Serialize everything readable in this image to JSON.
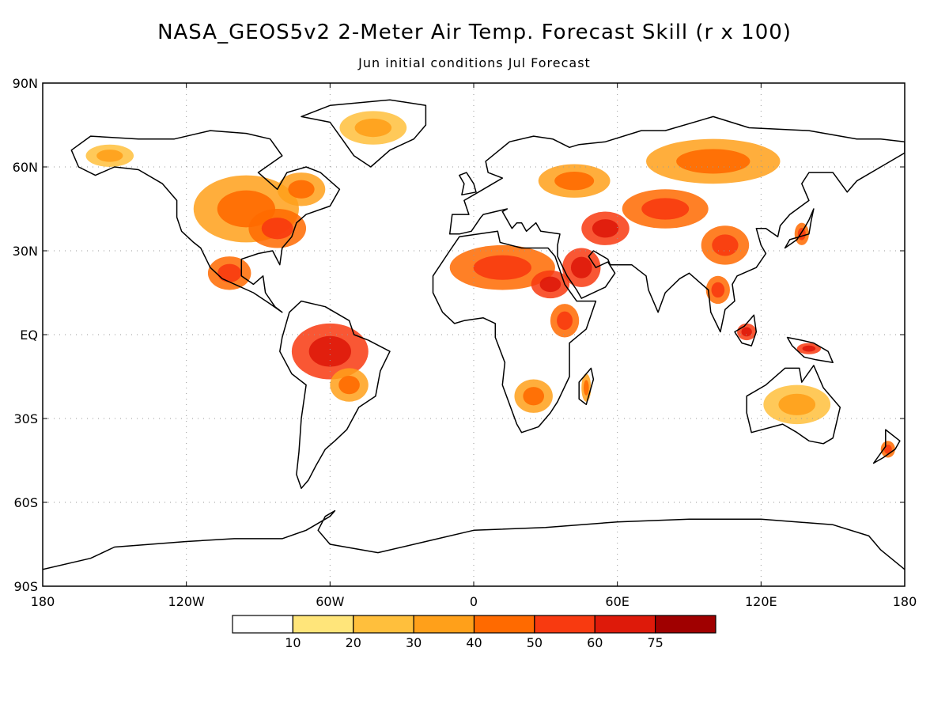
{
  "title": "NASA_GEOS5v2 2-Meter Air Temp. Forecast Skill (r x 100)",
  "subtitle": "Jun initial conditions   Jul Forecast",
  "map": {
    "projection": "latlon",
    "lon_range": [
      -180,
      180
    ],
    "lat_range": [
      -90,
      90
    ],
    "grid": "dotted",
    "lat_ticks": [
      {
        "value": 90,
        "label": "90N"
      },
      {
        "value": 60,
        "label": "60N"
      },
      {
        "value": 30,
        "label": "30N"
      },
      {
        "value": 0,
        "label": "EQ"
      },
      {
        "value": -30,
        "label": "30S"
      },
      {
        "value": -60,
        "label": "60S"
      },
      {
        "value": -90,
        "label": "90S"
      }
    ],
    "lon_ticks": [
      {
        "value": -180,
        "label": "180"
      },
      {
        "value": -120,
        "label": "120W"
      },
      {
        "value": -60,
        "label": "60W"
      },
      {
        "value": 0,
        "label": "0"
      },
      {
        "value": 60,
        "label": "60E"
      },
      {
        "value": 120,
        "label": "120E"
      },
      {
        "value": 180,
        "label": "180"
      }
    ]
  },
  "colorbar": {
    "colors": [
      "#ffffff",
      "#ffe57a",
      "#ffbf3c",
      "#ffa01a",
      "#ff6a00",
      "#f83a10",
      "#de1a0a",
      "#a00000"
    ],
    "labels": [
      "10",
      "20",
      "30",
      "40",
      "50",
      "60",
      "75"
    ]
  },
  "regions": [
    {
      "name": "north-america-interior",
      "lon": -95,
      "lat": 45,
      "rx": 22,
      "ry": 12,
      "level": 4
    },
    {
      "name": "eastern-us",
      "lon": -82,
      "lat": 38,
      "rx": 12,
      "ry": 7,
      "level": 5
    },
    {
      "name": "mexico",
      "lon": -102,
      "lat": 22,
      "rx": 9,
      "ry": 6,
      "level": 5
    },
    {
      "name": "canada-east",
      "lon": -72,
      "lat": 52,
      "rx": 10,
      "ry": 6,
      "level": 4
    },
    {
      "name": "greenland",
      "lon": -42,
      "lat": 74,
      "rx": 14,
      "ry": 6,
      "level": 3
    },
    {
      "name": "alaska",
      "lon": -152,
      "lat": 64,
      "rx": 10,
      "ry": 4,
      "level": 3
    },
    {
      "name": "amazon",
      "lon": -60,
      "lat": -6,
      "rx": 16,
      "ry": 10,
      "level": 6
    },
    {
      "name": "south-brazil",
      "lon": -52,
      "lat": -18,
      "rx": 8,
      "ry": 6,
      "level": 4
    },
    {
      "name": "sahara",
      "lon": 12,
      "lat": 24,
      "rx": 22,
      "ry": 8,
      "level": 5
    },
    {
      "name": "egypt-sudan",
      "lon": 32,
      "lat": 18,
      "rx": 8,
      "ry": 5,
      "level": 6
    },
    {
      "name": "east-africa",
      "lon": 38,
      "lat": 5,
      "rx": 6,
      "ry": 6,
      "level": 5
    },
    {
      "name": "southern-africa",
      "lon": 25,
      "lat": -22,
      "rx": 8,
      "ry": 6,
      "level": 4
    },
    {
      "name": "madagascar",
      "lon": 47,
      "lat": -19,
      "rx": 2,
      "ry": 5,
      "level": 4
    },
    {
      "name": "arabia",
      "lon": 45,
      "lat": 24,
      "rx": 8,
      "ry": 7,
      "level": 6
    },
    {
      "name": "iran-caspian",
      "lon": 55,
      "lat": 38,
      "rx": 10,
      "ry": 6,
      "level": 6
    },
    {
      "name": "central-asia",
      "lon": 80,
      "lat": 45,
      "rx": 18,
      "ry": 7,
      "level": 5
    },
    {
      "name": "siberia",
      "lon": 100,
      "lat": 62,
      "rx": 28,
      "ry": 8,
      "level": 4
    },
    {
      "name": "china",
      "lon": 105,
      "lat": 32,
      "rx": 10,
      "ry": 7,
      "level": 5
    },
    {
      "name": "europe-russia",
      "lon": 42,
      "lat": 55,
      "rx": 15,
      "ry": 6,
      "level": 4
    },
    {
      "name": "indochina",
      "lon": 102,
      "lat": 16,
      "rx": 5,
      "ry": 5,
      "level": 5
    },
    {
      "name": "borneo",
      "lon": 114,
      "lat": 1,
      "rx": 4,
      "ry": 3,
      "level": 6
    },
    {
      "name": "new-guinea",
      "lon": 140,
      "lat": -5,
      "rx": 5,
      "ry": 2,
      "level": 6
    },
    {
      "name": "australia",
      "lon": 135,
      "lat": -25,
      "rx": 14,
      "ry": 7,
      "level": 3
    },
    {
      "name": "new-zealand",
      "lon": 173,
      "lat": -41,
      "rx": 3,
      "ry": 3,
      "level": 5
    },
    {
      "name": "japan",
      "lon": 137,
      "lat": 36,
      "rx": 3,
      "ry": 4,
      "level": 5
    }
  ],
  "coastlines": [
    {
      "name": "north-america",
      "points": [
        [
          -168,
          66
        ],
        [
          -160,
          71
        ],
        [
          -140,
          70
        ],
        [
          -125,
          70
        ],
        [
          -110,
          73
        ],
        [
          -95,
          72
        ],
        [
          -85,
          70
        ],
        [
          -80,
          64
        ],
        [
          -90,
          58
        ],
        [
          -82,
          52
        ],
        [
          -78,
          58
        ],
        [
          -70,
          60
        ],
        [
          -64,
          58
        ],
        [
          -56,
          52
        ],
        [
          -60,
          46
        ],
        [
          -70,
          43
        ],
        [
          -74,
          40
        ],
        [
          -76,
          35
        ],
        [
          -80,
          31
        ],
        [
          -81,
          25
        ],
        [
          -84,
          30
        ],
        [
          -90,
          29
        ],
        [
          -97,
          27
        ],
        [
          -97,
          21
        ],
        [
          -92,
          18
        ],
        [
          -88,
          21
        ],
        [
          -87,
          15
        ],
        [
          -83,
          10
        ],
        [
          -80,
          8
        ],
        [
          -85,
          11
        ],
        [
          -92,
          15
        ],
        [
          -105,
          20
        ],
        [
          -110,
          24
        ],
        [
          -114,
          31
        ],
        [
          -117,
          33
        ],
        [
          -122,
          37
        ],
        [
          -124,
          42
        ],
        [
          -124,
          48
        ],
        [
          -130,
          54
        ],
        [
          -140,
          59
        ],
        [
          -150,
          60
        ],
        [
          -158,
          57
        ],
        [
          -165,
          60
        ],
        [
          -168,
          66
        ]
      ]
    },
    {
      "name": "south-america",
      "points": [
        [
          -77,
          8
        ],
        [
          -72,
          12
        ],
        [
          -62,
          10
        ],
        [
          -52,
          5
        ],
        [
          -50,
          0
        ],
        [
          -44,
          -2
        ],
        [
          -35,
          -6
        ],
        [
          -39,
          -13
        ],
        [
          -41,
          -22
        ],
        [
          -48,
          -26
        ],
        [
          -53,
          -34
        ],
        [
          -58,
          -38
        ],
        [
          -62,
          -41
        ],
        [
          -66,
          -47
        ],
        [
          -69,
          -52
        ],
        [
          -72,
          -55
        ],
        [
          -74,
          -50
        ],
        [
          -73,
          -42
        ],
        [
          -72,
          -30
        ],
        [
          -70,
          -18
        ],
        [
          -76,
          -14
        ],
        [
          -81,
          -6
        ],
        [
          -80,
          -1
        ],
        [
          -77,
          8
        ]
      ]
    },
    {
      "name": "greenland",
      "points": [
        [
          -72,
          78
        ],
        [
          -60,
          82
        ],
        [
          -35,
          84
        ],
        [
          -20,
          82
        ],
        [
          -20,
          75
        ],
        [
          -25,
          70
        ],
        [
          -35,
          66
        ],
        [
          -43,
          60
        ],
        [
          -50,
          64
        ],
        [
          -55,
          70
        ],
        [
          -60,
          76
        ],
        [
          -72,
          78
        ]
      ]
    },
    {
      "name": "africa",
      "points": [
        [
          -17,
          21
        ],
        [
          -10,
          30
        ],
        [
          -6,
          35
        ],
        [
          10,
          37
        ],
        [
          11,
          33
        ],
        [
          20,
          31
        ],
        [
          31,
          31
        ],
        [
          34,
          28
        ],
        [
          38,
          18
        ],
        [
          43,
          12
        ],
        [
          51,
          12
        ],
        [
          47,
          2
        ],
        [
          40,
          -3
        ],
        [
          40,
          -15
        ],
        [
          35,
          -24
        ],
        [
          32,
          -28
        ],
        [
          27,
          -33
        ],
        [
          20,
          -35
        ],
        [
          18,
          -32
        ],
        [
          12,
          -18
        ],
        [
          13,
          -10
        ],
        [
          9,
          -1
        ],
        [
          9,
          4
        ],
        [
          4,
          6
        ],
        [
          -4,
          5
        ],
        [
          -8,
          4
        ],
        [
          -13,
          8
        ],
        [
          -17,
          15
        ],
        [
          -17,
          21
        ]
      ]
    },
    {
      "name": "eurasia",
      "points": [
        [
          -10,
          36
        ],
        [
          -9,
          43
        ],
        [
          -2,
          43
        ],
        [
          -4,
          48
        ],
        [
          2,
          51
        ],
        [
          8,
          54
        ],
        [
          12,
          56
        ],
        [
          6,
          58
        ],
        [
          5,
          62
        ],
        [
          15,
          69
        ],
        [
          25,
          71
        ],
        [
          33,
          70
        ],
        [
          40,
          67
        ],
        [
          44,
          68
        ],
        [
          55,
          69
        ],
        [
          70,
          73
        ],
        [
          80,
          73
        ],
        [
          100,
          78
        ],
        [
          115,
          74
        ],
        [
          140,
          73
        ],
        [
          160,
          70
        ],
        [
          170,
          70
        ],
        [
          180,
          69
        ],
        [
          180,
          65
        ],
        [
          170,
          60
        ],
        [
          160,
          55
        ],
        [
          156,
          51
        ],
        [
          150,
          58
        ],
        [
          140,
          58
        ],
        [
          137,
          54
        ],
        [
          140,
          48
        ],
        [
          132,
          43
        ],
        [
          128,
          39
        ],
        [
          127,
          35
        ],
        [
          122,
          38
        ],
        [
          118,
          38
        ],
        [
          120,
          32
        ],
        [
          122,
          29
        ],
        [
          118,
          24
        ],
        [
          110,
          21
        ],
        [
          108,
          18
        ],
        [
          109,
          12
        ],
        [
          105,
          9
        ],
        [
          103,
          1
        ],
        [
          99,
          8
        ],
        [
          98,
          16
        ],
        [
          94,
          19
        ],
        [
          90,
          22
        ],
        [
          86,
          20
        ],
        [
          80,
          15
        ],
        [
          77,
          8
        ],
        [
          73,
          16
        ],
        [
          72,
          21
        ],
        [
          66,
          25
        ],
        [
          57,
          25
        ],
        [
          56,
          27
        ],
        [
          50,
          30
        ],
        [
          48,
          28
        ],
        [
          51,
          24
        ],
        [
          56,
          26
        ],
        [
          59,
          22
        ],
        [
          55,
          17
        ],
        [
          45,
          13
        ],
        [
          43,
          16
        ],
        [
          39,
          21
        ],
        [
          35,
          28
        ],
        [
          35,
          32
        ],
        [
          36,
          36
        ],
        [
          28,
          37
        ],
        [
          26,
          40
        ],
        [
          22,
          37
        ],
        [
          20,
          40
        ],
        [
          18,
          40
        ],
        [
          16,
          38
        ],
        [
          12,
          44
        ],
        [
          14,
          45
        ],
        [
          9,
          44
        ],
        [
          4,
          43
        ],
        [
          3,
          42
        ],
        [
          -1,
          37
        ],
        [
          -6,
          36
        ],
        [
          -10,
          36
        ]
      ]
    },
    {
      "name": "australia",
      "points": [
        [
          114,
          -22
        ],
        [
          122,
          -18
        ],
        [
          130,
          -12
        ],
        [
          136,
          -12
        ],
        [
          137,
          -17
        ],
        [
          142,
          -11
        ],
        [
          146,
          -19
        ],
        [
          153,
          -26
        ],
        [
          150,
          -37
        ],
        [
          146,
          -39
        ],
        [
          140,
          -38
        ],
        [
          135,
          -35
        ],
        [
          129,
          -32
        ],
        [
          116,
          -35
        ],
        [
          114,
          -28
        ],
        [
          114,
          -22
        ]
      ]
    },
    {
      "name": "borneo",
      "points": [
        [
          109,
          1
        ],
        [
          112,
          -3
        ],
        [
          116,
          -4
        ],
        [
          118,
          1
        ],
        [
          117,
          7
        ],
        [
          113,
          3
        ],
        [
          109,
          1
        ]
      ]
    },
    {
      "name": "new-guinea",
      "points": [
        [
          131,
          -1
        ],
        [
          137,
          -2
        ],
        [
          142,
          -3
        ],
        [
          148,
          -6
        ],
        [
          150,
          -10
        ],
        [
          143,
          -9
        ],
        [
          138,
          -8
        ],
        [
          133,
          -4
        ],
        [
          131,
          -1
        ]
      ]
    },
    {
      "name": "madagascar",
      "points": [
        [
          44,
          -17
        ],
        [
          49,
          -12
        ],
        [
          50,
          -16
        ],
        [
          47,
          -25
        ],
        [
          44,
          -23
        ],
        [
          44,
          -17
        ]
      ]
    },
    {
      "name": "antarctica",
      "points": [
        [
          -180,
          -84
        ],
        [
          -160,
          -80
        ],
        [
          -150,
          -76
        ],
        [
          -120,
          -74
        ],
        [
          -100,
          -73
        ],
        [
          -80,
          -73
        ],
        [
          -70,
          -70
        ],
        [
          -60,
          -65
        ],
        [
          -58,
          -63
        ],
        [
          -62,
          -65
        ],
        [
          -65,
          -70
        ],
        [
          -60,
          -75
        ],
        [
          -40,
          -78
        ],
        [
          -20,
          -74
        ],
        [
          0,
          -70
        ],
        [
          30,
          -69
        ],
        [
          60,
          -67
        ],
        [
          90,
          -66
        ],
        [
          120,
          -66
        ],
        [
          150,
          -68
        ],
        [
          165,
          -72
        ],
        [
          170,
          -77
        ],
        [
          180,
          -84
        ]
      ]
    },
    {
      "name": "japan",
      "points": [
        [
          130,
          31
        ],
        [
          132,
          34
        ],
        [
          136,
          35
        ],
        [
          140,
          36
        ],
        [
          141,
          41
        ],
        [
          142,
          45
        ],
        [
          140,
          41
        ],
        [
          138,
          38
        ],
        [
          135,
          34
        ],
        [
          130,
          31
        ]
      ]
    },
    {
      "name": "uk",
      "points": [
        [
          -5,
          50
        ],
        [
          1,
          51
        ],
        [
          0,
          54
        ],
        [
          -3,
          58
        ],
        [
          -6,
          57
        ],
        [
          -4,
          54
        ],
        [
          -5,
          50
        ]
      ]
    },
    {
      "name": "new-zealand",
      "points": [
        [
          172,
          -34
        ],
        [
          178,
          -38
        ],
        [
          176,
          -41
        ],
        [
          171,
          -44
        ],
        [
          167,
          -46
        ],
        [
          172,
          -40
        ],
        [
          172,
          -34
        ]
      ]
    }
  ]
}
